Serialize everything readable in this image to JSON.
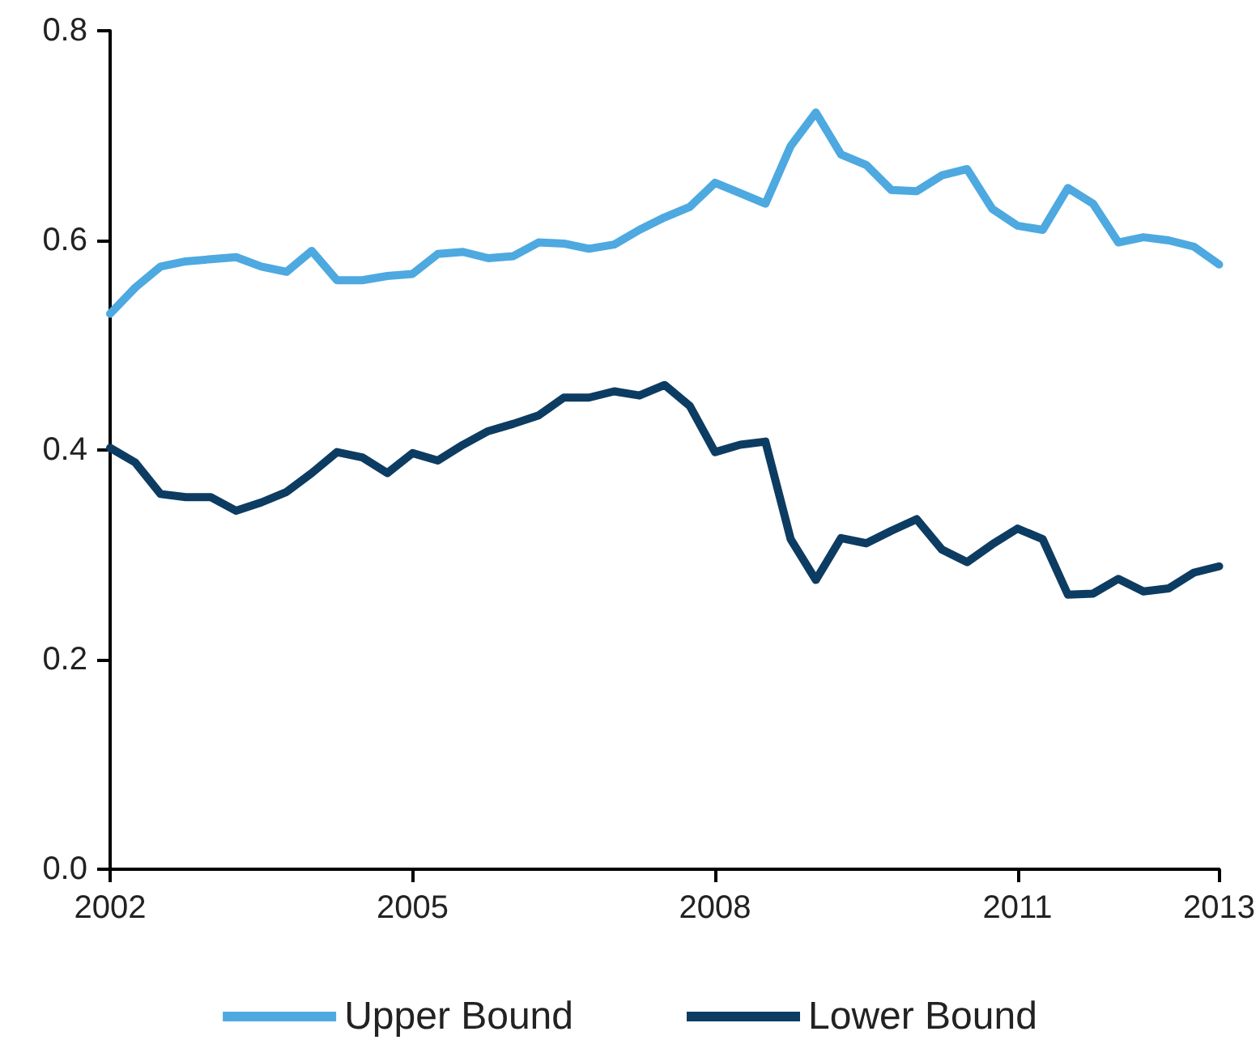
{
  "chart_data": {
    "type": "line",
    "x": [
      2002,
      2002.25,
      2002.5,
      2002.75,
      2003,
      2003.25,
      2003.5,
      2003.75,
      2004,
      2004.25,
      2004.5,
      2004.75,
      2005,
      2005.25,
      2005.5,
      2005.75,
      2006,
      2006.25,
      2006.5,
      2006.75,
      2007,
      2007.25,
      2007.5,
      2007.75,
      2008,
      2008.25,
      2008.5,
      2008.75,
      2009,
      2009.25,
      2009.5,
      2009.75,
      2010,
      2010.25,
      2010.5,
      2010.75,
      2011,
      2011.25,
      2011.5,
      2011.75,
      2012,
      2012.25,
      2012.5,
      2012.75,
      2013
    ],
    "series": [
      {
        "name": "Upper Bound",
        "color": "#4da9e0",
        "values": [
          0.53,
          0.555,
          0.575,
          0.58,
          0.582,
          0.584,
          0.575,
          0.57,
          0.59,
          0.562,
          0.562,
          0.566,
          0.568,
          0.587,
          0.589,
          0.583,
          0.585,
          0.598,
          0.597,
          0.592,
          0.596,
          0.61,
          0.622,
          0.632,
          0.655,
          0.645,
          0.635,
          0.69,
          0.722,
          0.682,
          0.672,
          0.648,
          0.647,
          0.662,
          0.668,
          0.63,
          0.614,
          0.61,
          0.65,
          0.635,
          0.598,
          0.603,
          0.6,
          0.594,
          0.577
        ]
      },
      {
        "name": "Lower Bound",
        "color": "#0d3c62",
        "values": [
          0.402,
          0.388,
          0.358,
          0.355,
          0.355,
          0.342,
          0.35,
          0.36,
          0.378,
          0.398,
          0.393,
          0.378,
          0.397,
          0.39,
          0.405,
          0.418,
          0.425,
          0.433,
          0.45,
          0.45,
          0.456,
          0.452,
          0.462,
          0.442,
          0.398,
          0.405,
          0.408,
          0.315,
          0.276,
          0.316,
          0.311,
          0.323,
          0.334,
          0.305,
          0.293,
          0.31,
          0.325,
          0.315,
          0.262,
          0.263,
          0.277,
          0.265,
          0.268,
          0.283,
          0.289
        ]
      }
    ],
    "xlim": [
      2002,
      2013
    ],
    "xticks": [
      2002,
      2005,
      2008,
      2011,
      2013
    ],
    "ylim": [
      0,
      0.8
    ],
    "yticks": [
      {
        "value": 0,
        "label": "0.0"
      },
      {
        "value": 0.2,
        "label": "0.2"
      },
      {
        "value": 0.4,
        "label": "0.4"
      },
      {
        "value": 0.6,
        "label": "0.6"
      },
      {
        "value": 0.8,
        "label": "0.8"
      }
    ],
    "grid": false,
    "legend": "bottom",
    "marker": "none",
    "line_style": "solid"
  }
}
